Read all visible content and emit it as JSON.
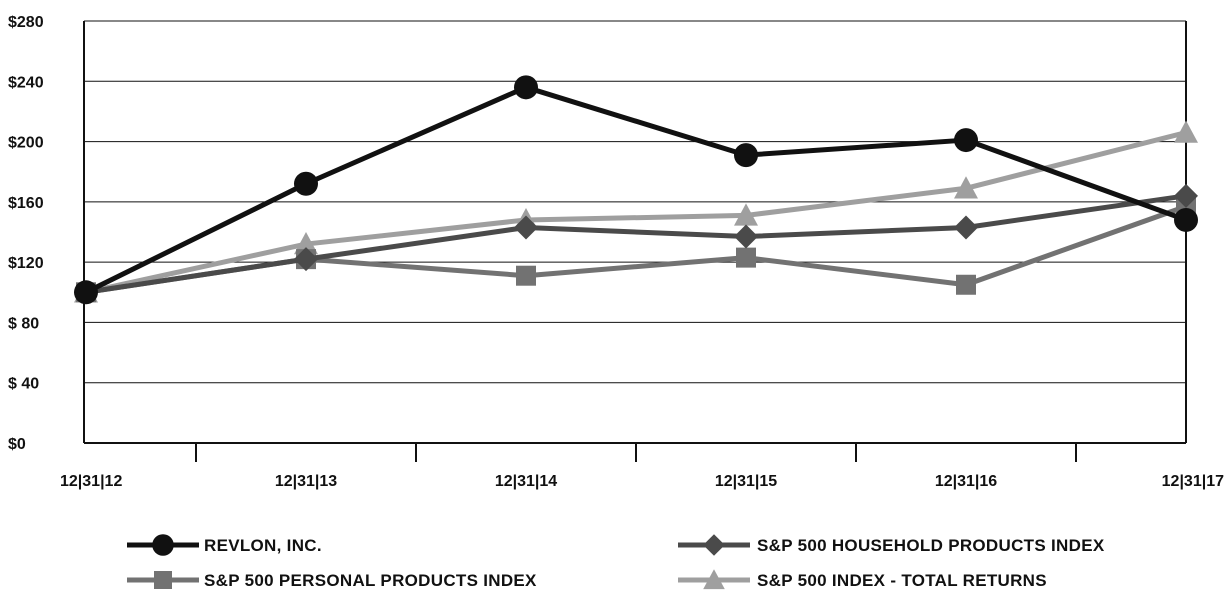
{
  "chart_data": {
    "type": "line",
    "title": "",
    "xlabel": "",
    "ylabel": "",
    "categories": [
      "12|31|12",
      "12|31|13",
      "12|31|14",
      "12|31|15",
      "12|31|16",
      "12|31|17"
    ],
    "ylim": [
      0,
      280
    ],
    "yticks": [
      0,
      40,
      80,
      120,
      160,
      200,
      240,
      280
    ],
    "ytick_labels": [
      "$0",
      "$ 40",
      "$ 80",
      "$120",
      "$160",
      "$200",
      "$240",
      "$280"
    ],
    "grid": true,
    "legend_position": "bottom",
    "series": [
      {
        "name": "REVLON, INC.",
        "values": [
          100,
          172,
          236,
          191,
          201,
          148
        ],
        "color": "#111111",
        "marker": "circle"
      },
      {
        "name": "S&P 500 HOUSEHOLD PRODUCTS INDEX",
        "values": [
          100,
          122,
          143,
          137,
          143,
          164
        ],
        "color": "#4a4a4a",
        "marker": "diamond"
      },
      {
        "name": "S&P 500 PERSONAL PRODUCTS INDEX",
        "values": [
          100,
          122,
          111,
          123,
          105,
          157
        ],
        "color": "#727272",
        "marker": "square"
      },
      {
        "name": "S&P 500 INDEX - TOTAL RETURNS",
        "values": [
          100,
          132,
          148,
          151,
          169,
          206
        ],
        "color": "#9f9f9f",
        "marker": "triangle"
      }
    ]
  }
}
